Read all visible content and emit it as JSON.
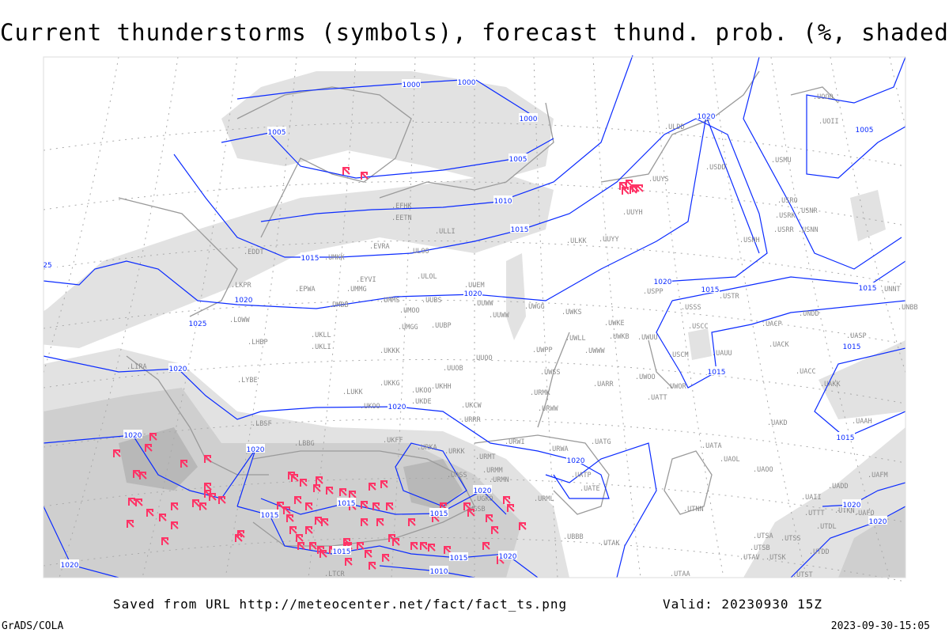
{
  "title": "Current thunderstorms (symbols), forecast thund. prob. (%, shaded)",
  "footer": {
    "saved_from": "Saved from URL http://meteocenter.net/fact/fact_ts.png",
    "valid": "Valid: 20230930 15Z",
    "software": "GrADS/COLA",
    "generated": "2023-09-30-15:05"
  },
  "colors": {
    "isobar": "#0b2bff",
    "thunderstorm_symbol": "#ff3366",
    "coastline": "#9a9a9a",
    "shading_light": "#e2e2e2",
    "shading_mid": "#cfcfcf",
    "shading_dark": "#b8b8b8"
  },
  "symbol_icon": "thunderstorm-icon",
  "isobar_labels": [
    "1000",
    "1000",
    "1000",
    "1005",
    "1005",
    "1010",
    "1015",
    "1015",
    "1020",
    "1025",
    "25",
    "1020",
    "1020",
    "1020",
    "1005",
    "1020",
    "1015",
    "1015",
    "1015",
    "1015",
    "1015",
    "1020",
    "1020",
    "1020",
    "1020",
    "1015",
    "1015",
    "1015",
    "1020",
    "1015",
    "1010",
    "1015",
    "1020",
    "1020",
    "1020",
    "1020"
  ],
  "stations": [
    "ULDD",
    "USDD",
    "UUYS",
    "UUYH",
    "ULKK",
    "UUYY",
    "USMU",
    "USRO",
    "USRK",
    "USNR",
    "USRR",
    "USNN",
    "USHH",
    "UOOO",
    "UOII",
    "USPP",
    "USSS",
    "USTR",
    "UNNT",
    "UNBB",
    "UWKS",
    "UWKE",
    "UWKB",
    "UWUU",
    "UWLL",
    "UWWW",
    "USCC",
    "UACP",
    "UNDD",
    "USCM",
    "UAUU",
    "UACK",
    "UACC",
    "UWOO",
    "UWOR",
    "UARR",
    "UATT",
    "UAKK",
    "UAAH",
    "UASP",
    "UAKD",
    "UATG",
    "UATA",
    "UAOL",
    "UAOO",
    "UAFM",
    "UADD",
    "UATP",
    "UATE",
    "UAII",
    "UTNN",
    "UTTT",
    "UTKN",
    "UAFO",
    "UTDL",
    "UBBB",
    "UTAK",
    "UTSA",
    "UTSS",
    "UTSB",
    "UTAV",
    "UTSK",
    "UTDD",
    "UTAA",
    "UTST",
    "URWA",
    "URML",
    "ULOL",
    "UUEM",
    "EYVI",
    "UMMG",
    "UMMS",
    "UMOO",
    "UUBS",
    "UUWW",
    "UWGG",
    "UMGG",
    "UUBP",
    "UKKK",
    "UUOO",
    "UUOB",
    "UKKG",
    "UKOO",
    "UKHH",
    "LUKK",
    "UKDE",
    "UKCW",
    "UWPP",
    "UWSS",
    "URMK",
    "URWW",
    "EFHK",
    "EETN",
    "ULLI",
    "EVRA",
    "ULOO",
    "UMKK",
    "EDDT",
    "LKPR",
    "EPWA",
    "UMBB",
    "LOWW",
    "UKLL",
    "LHBP",
    "UKLI",
    "LBSF",
    "UKOO",
    "LBBG",
    "UKFF",
    "URKA",
    "URKK",
    "URRR",
    "URWI",
    "URMT",
    "URMM",
    "URMN",
    "URSS",
    "UGKO",
    "UGSB",
    "LYBE",
    "LIRA",
    "LTCR",
    "UUWW"
  ]
}
